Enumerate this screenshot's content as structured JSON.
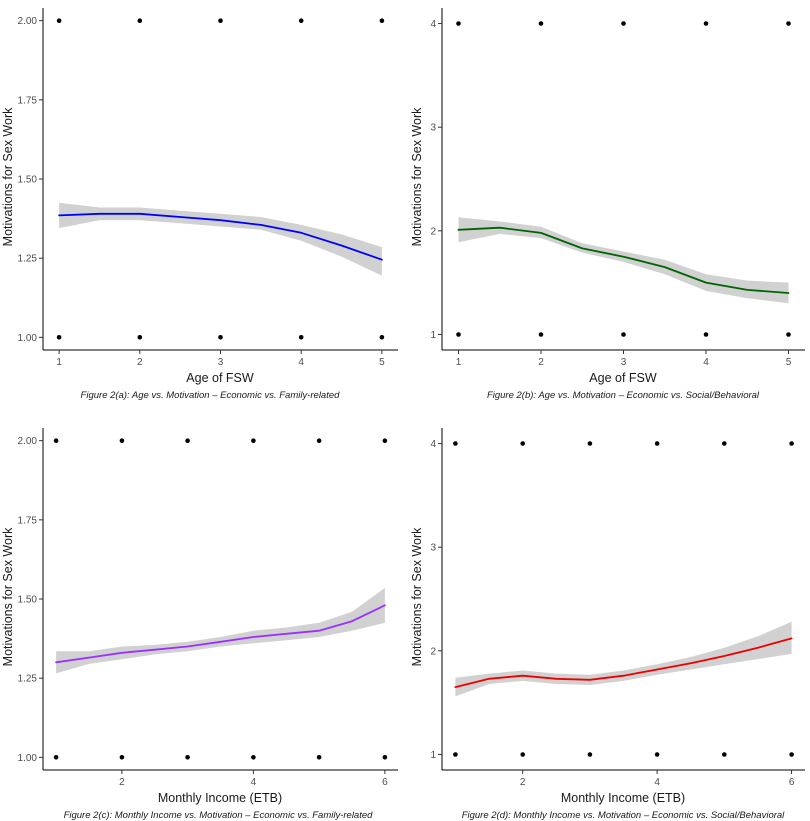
{
  "chart_data": [
    {
      "id": "2a",
      "type": "line",
      "caption": "Figure 2(a): Age vs. Motivation – Economic vs. Family-related",
      "xlabel": "Age of FSW",
      "ylabel": "Motivations for Sex Work",
      "xlim": [
        0.8,
        5.2
      ],
      "ylim": [
        0.96,
        2.04
      ],
      "xticks": [
        1,
        2,
        3,
        4,
        5
      ],
      "xtick_labels": [
        "1",
        "2",
        "3",
        "4",
        "5"
      ],
      "yticks": [
        1.0,
        1.25,
        1.5,
        1.75,
        2.0
      ],
      "ytick_labels": [
        "1.00",
        "1.25",
        "1.50",
        "1.75",
        "2.00"
      ],
      "line_color": "#0000ff",
      "points": [
        [
          1,
          1
        ],
        [
          2,
          1
        ],
        [
          3,
          1
        ],
        [
          4,
          1
        ],
        [
          5,
          1
        ],
        [
          1,
          2
        ],
        [
          2,
          2
        ],
        [
          3,
          2
        ],
        [
          4,
          2
        ],
        [
          5,
          2
        ]
      ],
      "smooth": {
        "x": [
          1,
          1.5,
          2,
          2.5,
          3,
          3.5,
          4,
          4.5,
          5
        ],
        "y": [
          1.385,
          1.39,
          1.39,
          1.38,
          1.37,
          1.355,
          1.33,
          1.29,
          1.245
        ],
        "lower": [
          1.345,
          1.37,
          1.37,
          1.36,
          1.35,
          1.34,
          1.305,
          1.255,
          1.195
        ],
        "upper": [
          1.425,
          1.41,
          1.41,
          1.4,
          1.39,
          1.38,
          1.355,
          1.325,
          1.285
        ]
      }
    },
    {
      "id": "2b",
      "type": "line",
      "caption": "Figure 2(b): Age vs. Motivation – Economic vs. Social/Behavioral",
      "xlabel": "Age of FSW",
      "ylabel": "Motivations for Sex Work",
      "xlim": [
        0.8,
        5.2
      ],
      "ylim": [
        0.85,
        4.15
      ],
      "xticks": [
        1,
        2,
        3,
        4,
        5
      ],
      "xtick_labels": [
        "1",
        "2",
        "3",
        "4",
        "5"
      ],
      "yticks": [
        1,
        2,
        3,
        4
      ],
      "ytick_labels": [
        "1",
        "2",
        "3",
        "4"
      ],
      "line_color": "#006400",
      "points": [
        [
          1,
          1
        ],
        [
          2,
          1
        ],
        [
          3,
          1
        ],
        [
          4,
          1
        ],
        [
          5,
          1
        ],
        [
          1,
          4
        ],
        [
          2,
          4
        ],
        [
          3,
          4
        ],
        [
          4,
          4
        ],
        [
          5,
          4
        ]
      ],
      "smooth": {
        "x": [
          1,
          1.5,
          2,
          2.5,
          3,
          3.5,
          4,
          4.5,
          5
        ],
        "y": [
          2.01,
          2.03,
          1.98,
          1.83,
          1.75,
          1.65,
          1.5,
          1.43,
          1.4
        ],
        "lower": [
          1.89,
          1.97,
          1.93,
          1.79,
          1.7,
          1.58,
          1.42,
          1.35,
          1.3
        ],
        "upper": [
          2.13,
          2.09,
          2.04,
          1.88,
          1.8,
          1.72,
          1.58,
          1.52,
          1.5
        ]
      }
    },
    {
      "id": "2c",
      "type": "line",
      "caption": "Figure 2(c): Monthly Income vs. Motivation – Economic vs. Family-related",
      "xlabel": "Monthly Income (ETB)",
      "ylabel": "Motivations for Sex Work",
      "xlim": [
        0.8,
        6.2
      ],
      "ylim": [
        0.96,
        2.04
      ],
      "xticks": [
        2,
        4,
        6
      ],
      "xtick_labels": [
        "2",
        "4",
        "6"
      ],
      "yticks": [
        1.0,
        1.25,
        1.5,
        1.75,
        2.0
      ],
      "ytick_labels": [
        "1.00",
        "1.25",
        "1.50",
        "1.75",
        "2.00"
      ],
      "line_color": "#9b30ff",
      "points": [
        [
          1,
          1
        ],
        [
          2,
          1
        ],
        [
          3,
          1
        ],
        [
          4,
          1
        ],
        [
          5,
          1
        ],
        [
          6,
          1
        ],
        [
          1,
          2
        ],
        [
          2,
          2
        ],
        [
          3,
          2
        ],
        [
          4,
          2
        ],
        [
          5,
          2
        ],
        [
          6,
          2
        ]
      ],
      "smooth": {
        "x": [
          1,
          1.5,
          2,
          2.5,
          3,
          3.5,
          4,
          4.5,
          5,
          5.5,
          6
        ],
        "y": [
          1.3,
          1.315,
          1.33,
          1.34,
          1.35,
          1.365,
          1.38,
          1.39,
          1.4,
          1.43,
          1.48
        ],
        "lower": [
          1.265,
          1.295,
          1.31,
          1.325,
          1.335,
          1.35,
          1.36,
          1.37,
          1.38,
          1.4,
          1.425
        ],
        "upper": [
          1.335,
          1.335,
          1.35,
          1.355,
          1.365,
          1.38,
          1.4,
          1.41,
          1.425,
          1.46,
          1.535
        ]
      }
    },
    {
      "id": "2d",
      "type": "line",
      "caption": "Figure 2(d): Monthly Income vs. Motivation – Economic vs. Social/Behavioral",
      "xlabel": "Monthly Income (ETB)",
      "ylabel": "Motivations for Sex Work",
      "xlim": [
        0.8,
        6.2
      ],
      "ylim": [
        0.85,
        4.15
      ],
      "xticks": [
        2,
        4,
        6
      ],
      "xtick_labels": [
        "2",
        "4",
        "6"
      ],
      "yticks": [
        1,
        2,
        3,
        4
      ],
      "ytick_labels": [
        "1",
        "2",
        "3",
        "4"
      ],
      "line_color": "#ee0000",
      "points": [
        [
          1,
          1
        ],
        [
          2,
          1
        ],
        [
          3,
          1
        ],
        [
          4,
          1
        ],
        [
          5,
          1
        ],
        [
          6,
          1
        ],
        [
          1,
          4
        ],
        [
          2,
          4
        ],
        [
          3,
          4
        ],
        [
          4,
          4
        ],
        [
          5,
          4
        ],
        [
          6,
          4
        ]
      ],
      "smooth": {
        "x": [
          1,
          1.5,
          2,
          2.5,
          3,
          3.5,
          4,
          4.5,
          5,
          5.5,
          6
        ],
        "y": [
          1.65,
          1.73,
          1.76,
          1.73,
          1.72,
          1.76,
          1.82,
          1.88,
          1.95,
          2.03,
          2.12
        ],
        "lower": [
          1.56,
          1.68,
          1.71,
          1.68,
          1.67,
          1.71,
          1.77,
          1.82,
          1.87,
          1.92,
          1.97
        ],
        "upper": [
          1.74,
          1.78,
          1.81,
          1.78,
          1.77,
          1.81,
          1.87,
          1.94,
          2.03,
          2.14,
          2.28
        ]
      }
    }
  ]
}
